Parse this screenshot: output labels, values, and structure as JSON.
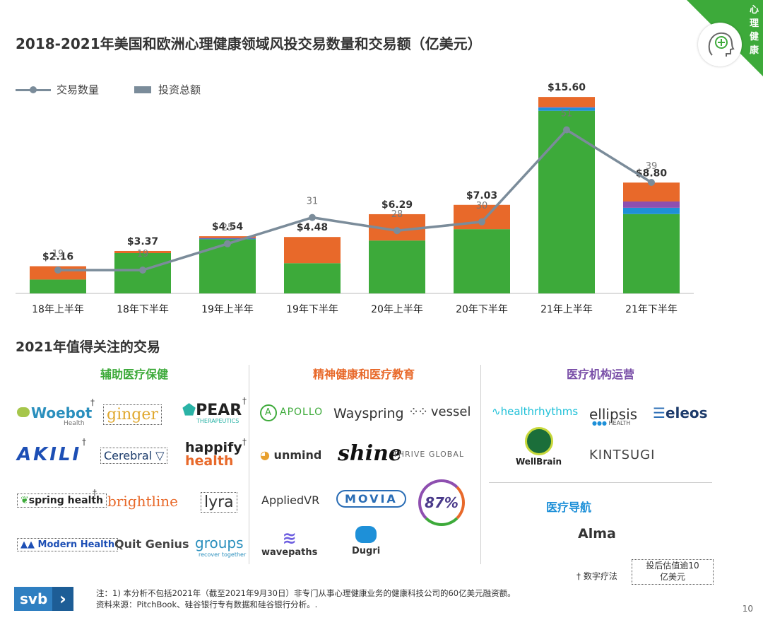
{
  "corner": {
    "label": "心理健康",
    "icon": "brain-plus-icon"
  },
  "chart_title": "2018-2021年美国和欧洲心理健康领域风投交易数量和交易额（亿美元）",
  "legend": {
    "line": "交易数量",
    "bar": "投资总额"
  },
  "chart_data": {
    "type": "bar",
    "categories": [
      "18年上半年",
      "18年下半年",
      "19年上半年",
      "19年下半年",
      "20年上半年",
      "20年下半年",
      "21年上半年",
      "21年下半年"
    ],
    "bar_labels": [
      "$2.16",
      "$3.37",
      "$4.54",
      "$4.48",
      "$6.29",
      "$7.03",
      "$15.60",
      "$8.80"
    ],
    "series": [
      {
        "values": [
          1.1,
          3.2,
          4.3,
          2.4,
          4.2,
          5.1,
          14.5,
          6.3
        ],
        "color": "#3daa3a"
      },
      {
        "values": [
          0,
          0,
          0.05,
          0,
          0,
          0,
          0.25,
          0.5
        ],
        "color": "#1e90d8"
      },
      {
        "values": [
          0,
          0,
          0.05,
          0,
          0,
          0,
          0.05,
          0.5
        ],
        "color": "#8e4fb0"
      },
      {
        "values": [
          1.06,
          0.17,
          0.14,
          2.08,
          2.09,
          1.93,
          0.8,
          1.5
        ],
        "color": "#e8692a"
      }
    ],
    "line": {
      "name": "交易数量",
      "values": [
        19,
        19,
        25,
        31,
        28,
        30,
        51,
        39
      ],
      "color": "#7b8c9a"
    },
    "ylim": [
      0,
      16
    ],
    "line_ylim": [
      0,
      55
    ]
  },
  "section_title": "2021年值得关注的交易",
  "categories": {
    "c1": {
      "title": "辅助医疗保健",
      "color": "#3daa3a"
    },
    "c2": {
      "title": "精神健康和医疗教育",
      "color": "#e8692a"
    },
    "c3": {
      "title": "医疗机构运营",
      "color": "#7a4fa8"
    },
    "c4": {
      "title": "医疗导航",
      "color": "#1e90d8"
    }
  },
  "logos": {
    "woebot": "Woebot",
    "woebot_sub": "Health",
    "ginger": "ginger",
    "pear": "PEAR",
    "pear_sub": "THERAPEUTICS",
    "akili": "AKILI",
    "cerebral": "Cerebral",
    "happify1": "happify",
    "happify2": "health",
    "spring": "spring health",
    "brightline": "brightline",
    "lyra": "lyra",
    "modern": "Modern Health",
    "quit": "Quit Genius",
    "groups": "groups",
    "groups_sub": "recover together",
    "apollo": "APOLLO",
    "wayspring": "Wayspring",
    "vessel": "vessel",
    "unmind": "unmind",
    "shine": "shine",
    "thrive": "THRIVE GLOBAL",
    "appliedvr": "AppliedVR",
    "movia": "MOVIA",
    "p87": "87%",
    "wavepaths": "wavepaths",
    "dugri": "Dugri",
    "healthrhythms": "healthrhythms",
    "ellipsis": "ellipsis",
    "ellipsis_sub": "HEALTH",
    "eleos": "eleos",
    "wellbrain": "WellBrain",
    "kintsugi": "KINTSUGI",
    "alma": "Alma"
  },
  "dagger": "†",
  "legend_note": {
    "dagger_text": "† 数字疗法",
    "box_text_1": "投后估值逾10",
    "box_text_2": "亿美元"
  },
  "notes": {
    "line1": "注：1) 本分析不包括2021年（截至2021年9月30日）非专门从事心理健康业务的健康科技公司的60亿美元融资额。",
    "line2": "资料来源：PitchBook、硅谷银行专有数据和硅谷银行分析。."
  },
  "footer": {
    "brand": "svb",
    "page": "10"
  }
}
